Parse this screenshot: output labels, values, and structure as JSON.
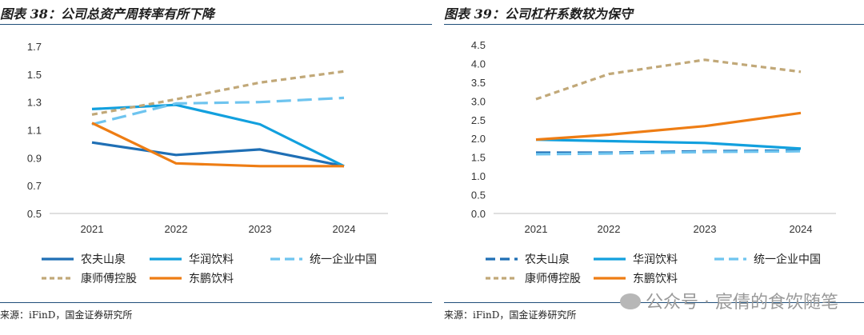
{
  "panels": [
    {
      "title": "图表 38：公司总资产周转率有所下降",
      "source": "来源：iFinD，国金证券研究所",
      "chart_data": {
        "type": "line",
        "categories": [
          "2021",
          "2022",
          "2023",
          "2024"
        ],
        "ylim": [
          0.5,
          1.7
        ],
        "yticks": [
          "0.5",
          "0.7",
          "0.9",
          "1.1",
          "1.3",
          "1.5",
          "1.7"
        ],
        "grid": false,
        "legend": "bottom",
        "series": [
          {
            "name": "农夫山泉",
            "values": [
              1.01,
              0.92,
              0.96,
              0.84
            ],
            "color": "#1f6fb5",
            "dash": "solid"
          },
          {
            "name": "华润饮料",
            "values": [
              1.25,
              1.28,
              1.14,
              0.84
            ],
            "color": "#12a0de",
            "dash": "solid"
          },
          {
            "name": "统一企业中国",
            "values": [
              1.14,
              1.29,
              1.3,
              1.33
            ],
            "color": "#6ec4ef",
            "dash": "long-dash"
          },
          {
            "name": "康师傅控股",
            "values": [
              1.21,
              1.32,
              1.44,
              1.52
            ],
            "color": "#c1a878",
            "dash": "short-dash"
          },
          {
            "name": "东鹏饮料",
            "values": [
              1.15,
              0.86,
              0.84,
              0.84
            ],
            "color": "#ee7d14",
            "dash": "solid"
          }
        ]
      }
    },
    {
      "title": "图表 39：公司杠杆系数较为保守",
      "source": "来源：iFinD，国金证券研究所",
      "chart_data": {
        "type": "line",
        "categories": [
          "2021",
          "2022",
          "2023",
          "2024"
        ],
        "ylim": [
          0.0,
          4.5
        ],
        "yticks": [
          "0.0",
          "0.5",
          "1.0",
          "1.5",
          "2.0",
          "2.5",
          "3.0",
          "3.5",
          "4.0",
          "4.5"
        ],
        "grid": false,
        "legend": "bottom",
        "series": [
          {
            "name": "农夫山泉",
            "values": [
              1.62,
              1.62,
              1.66,
              1.68
            ],
            "color": "#1f6fb5",
            "dash": "long-dash"
          },
          {
            "name": "华润饮料",
            "values": [
              1.97,
              1.93,
              1.88,
              1.73
            ],
            "color": "#12a0de",
            "dash": "solid"
          },
          {
            "name": "统一企业中国",
            "values": [
              1.58,
              1.6,
              1.64,
              1.66
            ],
            "color": "#6ec4ef",
            "dash": "long-dash"
          },
          {
            "name": "康师傅控股",
            "values": [
              3.05,
              3.72,
              4.1,
              3.78
            ],
            "color": "#c1a878",
            "dash": "short-dash"
          },
          {
            "name": "东鹏饮料",
            "values": [
              1.97,
              2.1,
              2.33,
              2.68
            ],
            "color": "#ee7d14",
            "dash": "solid"
          }
        ]
      }
    }
  ],
  "watermark": "公众号 · 宸倩的食饮随笔"
}
